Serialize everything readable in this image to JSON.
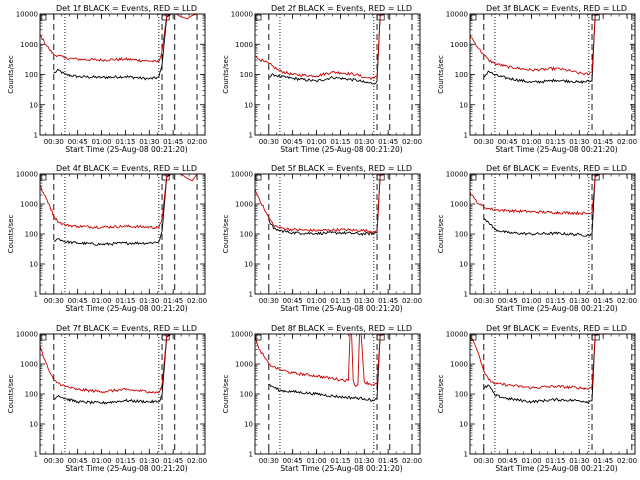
{
  "chart_data": [
    {
      "type": "line",
      "title": "Det 1f BLACK = Events, RED = LLD",
      "ylabel": "Counts/sec",
      "xlabel": "Start Time (25-Aug-08 00:21:20)",
      "x_ticks": [
        "00:30",
        "00:45",
        "01:00",
        "01:15",
        "01:30",
        "01:45",
        "02:00"
      ],
      "y_ticks": [
        "1",
        "10",
        "100",
        "1000",
        "10000"
      ],
      "yscale": "log",
      "ylim": [
        1,
        10000
      ],
      "xlim": [
        "00:21:20",
        "02:05:00"
      ],
      "vlines_dashed": [
        "00:30",
        "01:38",
        "01:46",
        "02:00"
      ],
      "vlines_dotted": [
        "00:37",
        "01:36"
      ],
      "series": [
        {
          "color": "#000000",
          "t": [
            "00:21:20",
            "00:24",
            "00:27",
            "00:30",
            "00:33",
            "00:37",
            "00:45",
            "01:00",
            "01:15",
            "01:30",
            "01:36",
            "01:38",
            "01:41",
            "01:44",
            "01:47",
            "01:50"
          ],
          "v": [
            null,
            null,
            null,
            110,
            140,
            100,
            85,
            80,
            85,
            72,
            80,
            200,
            8000,
            10000,
            10000,
            10000
          ]
        },
        {
          "color": "#cc0000",
          "t": [
            "00:21:20",
            "00:24",
            "00:27",
            "00:30",
            "00:33",
            "00:37",
            "00:45",
            "01:00",
            "01:15",
            "01:30",
            "01:36",
            "01:38",
            "01:41",
            "01:44",
            "01:47",
            "01:50",
            "01:54",
            "01:57",
            "02:00"
          ],
          "v": [
            2000,
            1200,
            700,
            450,
            420,
            350,
            320,
            300,
            320,
            280,
            260,
            600,
            9000,
            10000,
            10000,
            8000,
            7000,
            9000,
            10000
          ]
        }
      ]
    },
    {
      "type": "line",
      "title": "Det 2f BLACK = Events, RED = LLD",
      "ylabel": "Counts/sec",
      "xlabel": "Start Time (25-Aug-08 00:21:20)",
      "x_ticks": [
        "00:30",
        "00:45",
        "01:00",
        "01:15",
        "01:30",
        "01:45",
        "02:00"
      ],
      "y_ticks": [
        "1",
        "10",
        "100",
        "1000",
        "10000"
      ],
      "yscale": "log",
      "ylim": [
        1,
        10000
      ],
      "xlim": [
        "00:21:20",
        "02:05:00"
      ],
      "vlines_dashed": [
        "00:30",
        "01:38",
        "01:46",
        "02:00"
      ],
      "vlines_dotted": [
        "00:37",
        "01:36"
      ],
      "series": [
        {
          "color": "#000000",
          "t": [
            "00:30",
            "00:33",
            "00:37",
            "00:45",
            "01:00",
            "01:10",
            "01:15",
            "01:25",
            "01:30",
            "01:36",
            "01:38",
            "01:40",
            "01:43"
          ],
          "v": [
            80,
            100,
            85,
            75,
            60,
            80,
            75,
            65,
            55,
            50,
            60,
            9000,
            10000
          ]
        },
        {
          "color": "#cc0000",
          "t": [
            "00:21:20",
            "00:24",
            "00:27",
            "00:30",
            "00:33",
            "00:37",
            "00:45",
            "01:00",
            "01:10",
            "01:15",
            "01:25",
            "01:30",
            "01:36",
            "01:38",
            "01:40",
            "01:43",
            "01:50"
          ],
          "v": [
            400,
            320,
            270,
            230,
            180,
            130,
            100,
            90,
            120,
            115,
            100,
            80,
            75,
            85,
            9000,
            10000,
            10000
          ]
        }
      ]
    },
    {
      "type": "line",
      "title": "Det 3f BLACK = Events, RED = LLD",
      "ylabel": "Counts/sec",
      "xlabel": "Start Time (25-Aug-08 00:21:20)",
      "x_ticks": [
        "00:30",
        "00:45",
        "01:00",
        "01:15",
        "01:30",
        "01:45",
        "02:00"
      ],
      "y_ticks": [
        "1",
        "10",
        "100",
        "1000",
        "10000"
      ],
      "yscale": "log",
      "ylim": [
        1,
        10000
      ],
      "xlim": [
        "00:21:20",
        "02:05:00"
      ],
      "vlines_dashed": [
        "00:30",
        "01:38",
        "02:03"
      ],
      "vlines_dotted": [
        "00:37",
        "01:36"
      ],
      "series": [
        {
          "color": "#000000",
          "t": [
            "00:30",
            "00:33",
            "00:37",
            "00:45",
            "01:00",
            "01:10",
            "01:15",
            "01:25",
            "01:30",
            "01:36",
            "01:38",
            "01:40",
            "01:43"
          ],
          "v": [
            80,
            130,
            95,
            75,
            55,
            60,
            65,
            60,
            55,
            60,
            60,
            9000,
            10000
          ]
        },
        {
          "color": "#cc0000",
          "t": [
            "00:21:20",
            "00:24",
            "00:27",
            "00:30",
            "00:33",
            "00:37",
            "00:45",
            "01:00",
            "01:10",
            "01:15",
            "01:25",
            "01:30",
            "01:36",
            "01:38",
            "01:40",
            "01:43",
            "01:50"
          ],
          "v": [
            2000,
            1200,
            700,
            450,
            300,
            230,
            180,
            140,
            150,
            160,
            130,
            110,
            100,
            120,
            9000,
            10000,
            10000
          ]
        }
      ]
    },
    {
      "type": "line",
      "title": "Det 4f BLACK = Events, RED = LLD",
      "ylabel": "Counts/sec",
      "xlabel": "Start Time (25-Aug-08 00:21:20)",
      "x_ticks": [
        "00:30",
        "00:45",
        "01:00",
        "01:15",
        "01:30",
        "01:45",
        "02:00"
      ],
      "y_ticks": [
        "1",
        "10",
        "100",
        "1000",
        "10000"
      ],
      "yscale": "log",
      "ylim": [
        1,
        10000
      ],
      "xlim": [
        "00:21:20",
        "02:05:00"
      ],
      "vlines_dashed": [
        "00:30",
        "01:38",
        "01:46",
        "02:00"
      ],
      "vlines_dotted": [
        "00:37",
        "01:36"
      ],
      "series": [
        {
          "color": "#000000",
          "t": [
            "00:30",
            "00:33",
            "00:37",
            "00:45",
            "01:00",
            "01:15",
            "01:30",
            "01:36",
            "01:38",
            "01:41",
            "01:44"
          ],
          "v": [
            60,
            70,
            55,
            50,
            45,
            50,
            50,
            55,
            120,
            8000,
            10000
          ]
        },
        {
          "color": "#cc0000",
          "t": [
            "00:21:20",
            "00:24",
            "00:27",
            "00:30",
            "00:33",
            "00:37",
            "00:45",
            "01:00",
            "01:15",
            "01:30",
            "01:36",
            "01:38",
            "01:41",
            "01:44",
            "01:50",
            "01:54",
            "01:57",
            "02:00"
          ],
          "v": [
            4000,
            2000,
            1000,
            400,
            250,
            200,
            180,
            170,
            180,
            170,
            160,
            300,
            9000,
            10000,
            10000,
            7000,
            6000,
            10000
          ]
        }
      ]
    },
    {
      "type": "line",
      "title": "Det 5f BLACK = Events, RED = LLD",
      "ylabel": "Counts/sec",
      "xlabel": "Start Time (25-Aug-08 00:21:20)",
      "x_ticks": [
        "00:30",
        "00:45",
        "01:00",
        "01:15",
        "01:30",
        "01:45",
        "02:00"
      ],
      "y_ticks": [
        "1",
        "10",
        "100",
        "1000",
        "10000"
      ],
      "yscale": "log",
      "ylim": [
        1,
        10000
      ],
      "xlim": [
        "00:21:20",
        "02:05:00"
      ],
      "vlines_dashed": [
        "00:30",
        "01:38",
        "01:46",
        "02:00"
      ],
      "vlines_dotted": [
        "00:37",
        "01:36"
      ],
      "series": [
        {
          "color": "#000000",
          "t": [
            "00:30",
            "00:33",
            "00:37",
            "00:45",
            "01:00",
            "01:15",
            "01:30",
            "01:36",
            "01:38",
            "01:40",
            "01:43"
          ],
          "v": [
            300,
            150,
            130,
            110,
            105,
            110,
            100,
            105,
            110,
            9000,
            10000
          ]
        },
        {
          "color": "#cc0000",
          "t": [
            "00:21:20",
            "00:24",
            "00:27",
            "00:30",
            "00:33",
            "00:37",
            "00:45",
            "01:00",
            "01:15",
            "01:30",
            "01:36",
            "01:38",
            "01:40",
            "01:43",
            "01:50"
          ],
          "v": [
            3000,
            1500,
            700,
            350,
            200,
            160,
            140,
            130,
            140,
            130,
            120,
            130,
            9000,
            10000,
            10000
          ]
        }
      ]
    },
    {
      "type": "line",
      "title": "Det 6f BLACK = Events, RED = LLD",
      "ylabel": "Counts/sec",
      "xlabel": "Start Time (25-Aug-08 00:21:20)",
      "x_ticks": [
        "00:30",
        "00:45",
        "01:00",
        "01:15",
        "01:30",
        "01:45",
        "02:00"
      ],
      "y_ticks": [
        "1",
        "10",
        "100",
        "1000",
        "10000"
      ],
      "yscale": "log",
      "ylim": [
        1,
        10000
      ],
      "xlim": [
        "00:21:20",
        "02:05:00"
      ],
      "vlines_dashed": [
        "00:30",
        "01:38",
        "02:03"
      ],
      "vlines_dotted": [
        "00:37",
        "01:36"
      ],
      "series": [
        {
          "color": "#000000",
          "t": [
            "00:30",
            "00:33",
            "00:37",
            "00:45",
            "01:00",
            "01:15",
            "01:30",
            "01:36",
            "01:38",
            "01:40",
            "01:43"
          ],
          "v": [
            300,
            250,
            140,
            110,
            100,
            105,
            95,
            90,
            100,
            9000,
            10000
          ]
        },
        {
          "color": "#cc0000",
          "t": [
            "00:21:20",
            "00:24",
            "00:27",
            "00:30",
            "00:33",
            "00:37",
            "00:45",
            "01:00",
            "01:15",
            "01:30",
            "01:36",
            "01:38",
            "01:40",
            "01:43",
            "01:50"
          ],
          "v": [
            2500,
            1500,
            1000,
            800,
            700,
            650,
            600,
            550,
            520,
            500,
            480,
            500,
            8000,
            10000,
            10000
          ]
        }
      ]
    },
    {
      "type": "line",
      "title": "Det 7f BLACK = Events, RED = LLD",
      "ylabel": "Counts/sec",
      "xlabel": "Start Time (25-Aug-08 00:21:20)",
      "x_ticks": [
        "00:30",
        "00:45",
        "01:00",
        "01:15",
        "01:30",
        "01:45",
        "02:00"
      ],
      "y_ticks": [
        "1",
        "10",
        "100",
        "1000",
        "10000"
      ],
      "yscale": "log",
      "ylim": [
        1,
        10000
      ],
      "xlim": [
        "00:21:20",
        "02:05:00"
      ],
      "vlines_dashed": [
        "00:30",
        "01:38",
        "01:46",
        "02:00"
      ],
      "vlines_dotted": [
        "00:37",
        "01:36"
      ],
      "series": [
        {
          "color": "#000000",
          "t": [
            "00:30",
            "00:33",
            "00:37",
            "00:45",
            "01:00",
            "01:15",
            "01:30",
            "01:36",
            "01:38",
            "01:41",
            "01:44"
          ],
          "v": [
            70,
            90,
            70,
            55,
            50,
            60,
            55,
            55,
            90,
            8000,
            10000
          ]
        },
        {
          "color": "#cc0000",
          "t": [
            "00:21:20",
            "00:24",
            "00:27",
            "00:30",
            "00:33",
            "00:37",
            "00:45",
            "01:00",
            "01:15",
            "01:30",
            "01:36",
            "01:38",
            "01:41",
            "01:44",
            "01:50"
          ],
          "v": [
            4000,
            1500,
            600,
            280,
            230,
            180,
            140,
            120,
            140,
            120,
            110,
            200,
            9000,
            10000,
            10000
          ]
        }
      ]
    },
    {
      "type": "line",
      "title": "Det 8f BLACK = Events, RED = LLD",
      "ylabel": "Counts/sec",
      "xlabel": "Start Time (25-Aug-08 00:21:20)",
      "x_ticks": [
        "00:30",
        "00:45",
        "01:00",
        "01:15",
        "01:30",
        "01:45",
        "02:00"
      ],
      "y_ticks": [
        "1",
        "10",
        "100",
        "1000",
        "10000"
      ],
      "yscale": "log",
      "ylim": [
        1,
        10000
      ],
      "xlim": [
        "00:21:20",
        "02:05:00"
      ],
      "vlines_dashed": [
        "00:30",
        "01:38",
        "01:46",
        "02:00"
      ],
      "vlines_dotted": [
        "00:37",
        "01:36"
      ],
      "series": [
        {
          "color": "#000000",
          "t": [
            "00:30",
            "00:33",
            "00:37",
            "00:45",
            "01:00",
            "01:15",
            "01:30",
            "01:36",
            "01:38",
            "01:40",
            "01:43"
          ],
          "v": [
            200,
            170,
            130,
            120,
            100,
            80,
            70,
            60,
            70,
            9000,
            10000
          ]
        },
        {
          "color": "#cc0000",
          "t": [
            "00:21:20",
            "00:24",
            "00:27",
            "00:30",
            "00:33",
            "00:37",
            "00:45",
            "01:00",
            "01:15",
            "01:20",
            "01:21",
            "01:22",
            "01:23",
            "01:24",
            "01:26",
            "01:27",
            "01:28",
            "01:30",
            "01:36",
            "01:38",
            "01:40",
            "01:43",
            "01:50"
          ],
          "v": [
            8000,
            3000,
            1800,
            1000,
            800,
            650,
            500,
            400,
            300,
            280,
            10000,
            10000,
            280,
            200,
            200,
            10000,
            10000,
            250,
            200,
            220,
            9000,
            10000,
            10000
          ]
        }
      ]
    },
    {
      "type": "line",
      "title": "Det 9f BLACK = Events, RED = LLD",
      "ylabel": "Counts/sec",
      "xlabel": "Start Time (25-Aug-08 00:21:20)",
      "x_ticks": [
        "00:30",
        "00:45",
        "01:00",
        "01:15",
        "01:30",
        "01:45",
        "02:00"
      ],
      "y_ticks": [
        "1",
        "10",
        "100",
        "1000",
        "10000"
      ],
      "yscale": "log",
      "ylim": [
        1,
        10000
      ],
      "xlim": [
        "00:21:20",
        "02:05:00"
      ],
      "vlines_dashed": [
        "00:30",
        "01:38",
        "02:03"
      ],
      "vlines_dotted": [
        "00:37",
        "01:36"
      ],
      "series": [
        {
          "color": "#000000",
          "t": [
            "00:30",
            "00:33",
            "00:37",
            "00:45",
            "01:00",
            "01:15",
            "01:30",
            "01:36",
            "01:38",
            "01:40",
            "01:43"
          ],
          "v": [
            150,
            200,
            90,
            70,
            55,
            65,
            60,
            55,
            60,
            9000,
            10000
          ]
        },
        {
          "color": "#cc0000",
          "t": [
            "00:21:20",
            "00:24",
            "00:27",
            "00:30",
            "00:33",
            "00:37",
            "00:45",
            "01:00",
            "01:15",
            "01:30",
            "01:36",
            "01:38",
            "01:40",
            "01:43",
            "01:50"
          ],
          "v": [
            10000,
            5000,
            2000,
            600,
            300,
            220,
            200,
            160,
            180,
            160,
            150,
            170,
            9000,
            10000,
            10000
          ]
        }
      ]
    }
  ]
}
